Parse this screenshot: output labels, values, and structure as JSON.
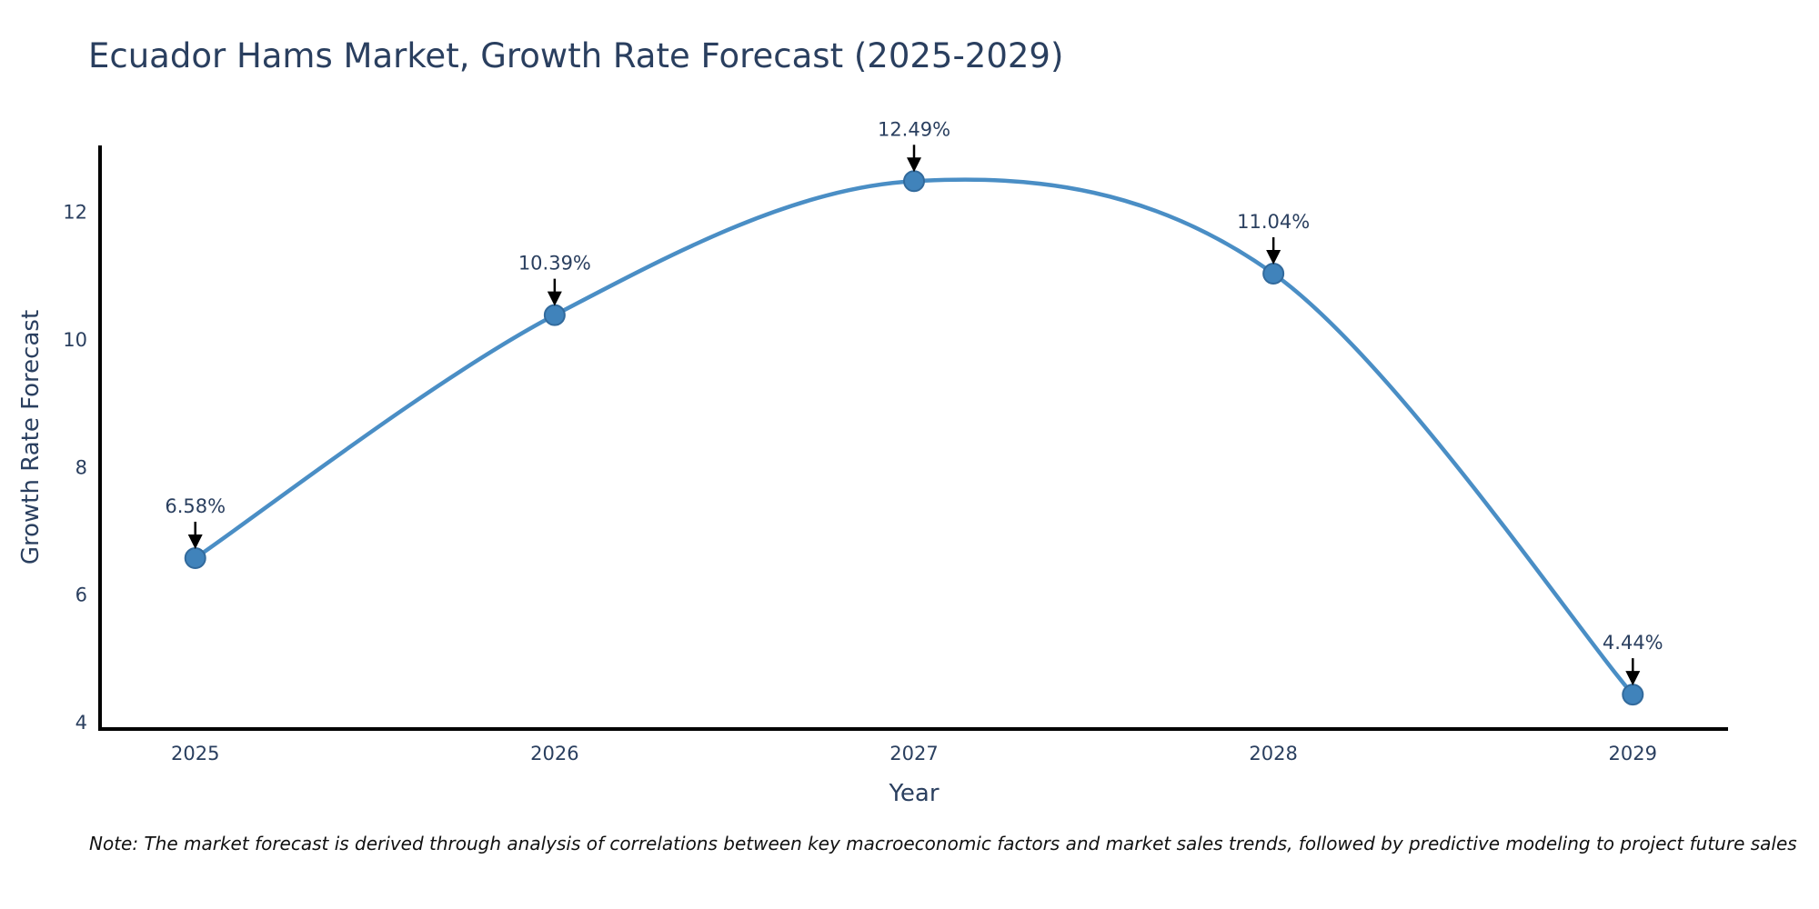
{
  "note": "Note: The market forecast is derived through analysis of correlations between key macroeconomic factors and market sales trends, followed by predictive modeling to project future sales",
  "chart_data": {
    "type": "line",
    "title": "Ecuador Hams Market, Growth Rate Forecast (2025-2029)",
    "xlabel": "Year",
    "ylabel": "Growth Rate Forecast",
    "x": [
      2025,
      2026,
      2027,
      2028,
      2029
    ],
    "values": [
      6.58,
      10.39,
      12.49,
      11.04,
      4.44
    ],
    "labels": [
      "6.58%",
      "10.39%",
      "12.49%",
      "11.04%",
      "4.44%"
    ],
    "yticks": [
      4,
      6,
      8,
      10,
      12
    ],
    "xlim": [
      2024.735,
      2029.265
    ],
    "ylim": [
      3.9,
      13.05
    ],
    "line_shape": "spline",
    "grid": false,
    "legend": "none",
    "colors": {
      "line": "#4a8ec5",
      "marker_fill": "#4083bb",
      "marker_edge": "#326a9c",
      "axis": "#000000",
      "text": "#2a3f5f",
      "arrow": "#000000",
      "background": "#ffffff"
    }
  }
}
